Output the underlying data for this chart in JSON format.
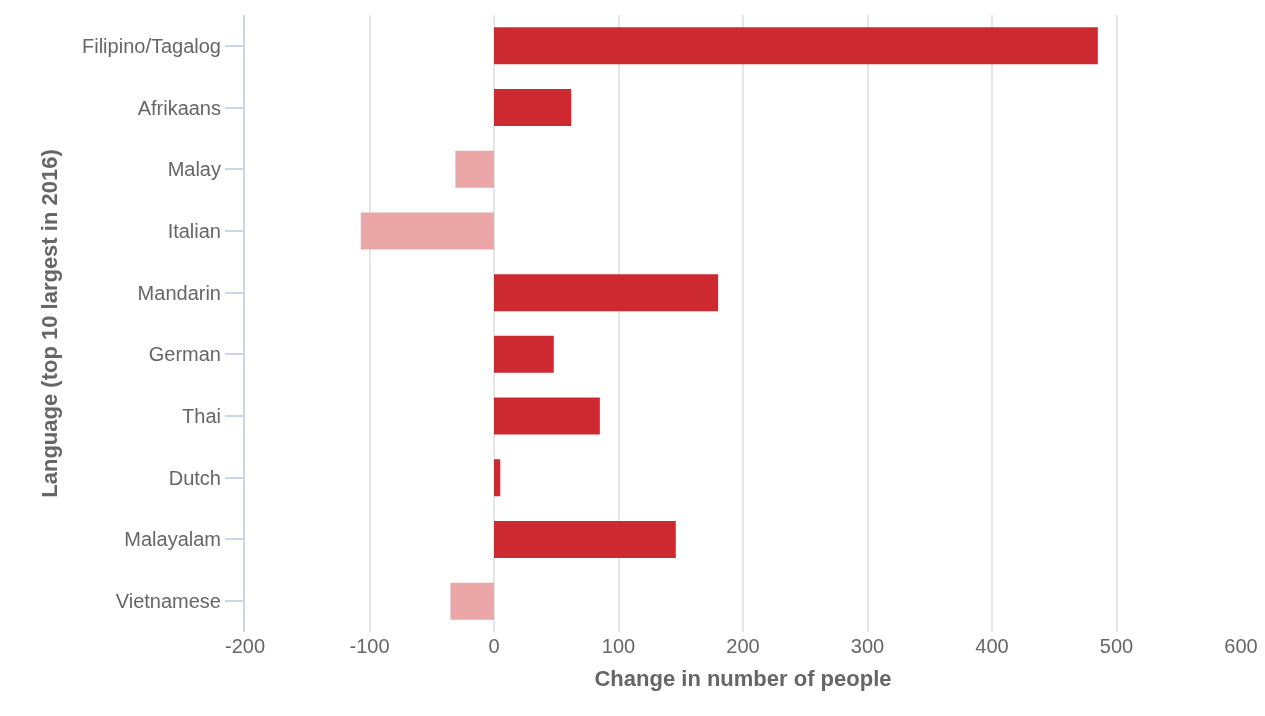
{
  "chart_data": {
    "type": "bar",
    "orientation": "horizontal",
    "xlabel": "Change in number of people",
    "ylabel": "Language (top 10 largest in 2016)",
    "categories": [
      "Filipino/Tagalog",
      "Afrikaans",
      "Malay",
      "Italian",
      "Mandarin",
      "German",
      "Thai",
      "Dutch",
      "Malayalam",
      "Vietnamese"
    ],
    "values": [
      485,
      62,
      -31,
      -107,
      180,
      48,
      85,
      5,
      146,
      -35
    ],
    "colors": [
      "#cc2a30",
      "#cc2a30",
      "#eba6a8",
      "#eba6a8",
      "#cc2a30",
      "#cc2a30",
      "#cc2a30",
      "#cc2a30",
      "#cc2a30",
      "#eba6a8"
    ],
    "xlim": [
      -200,
      600
    ],
    "xticks": [
      -200,
      -100,
      0,
      100,
      200,
      300,
      400,
      500,
      600
    ],
    "grid": "x"
  }
}
